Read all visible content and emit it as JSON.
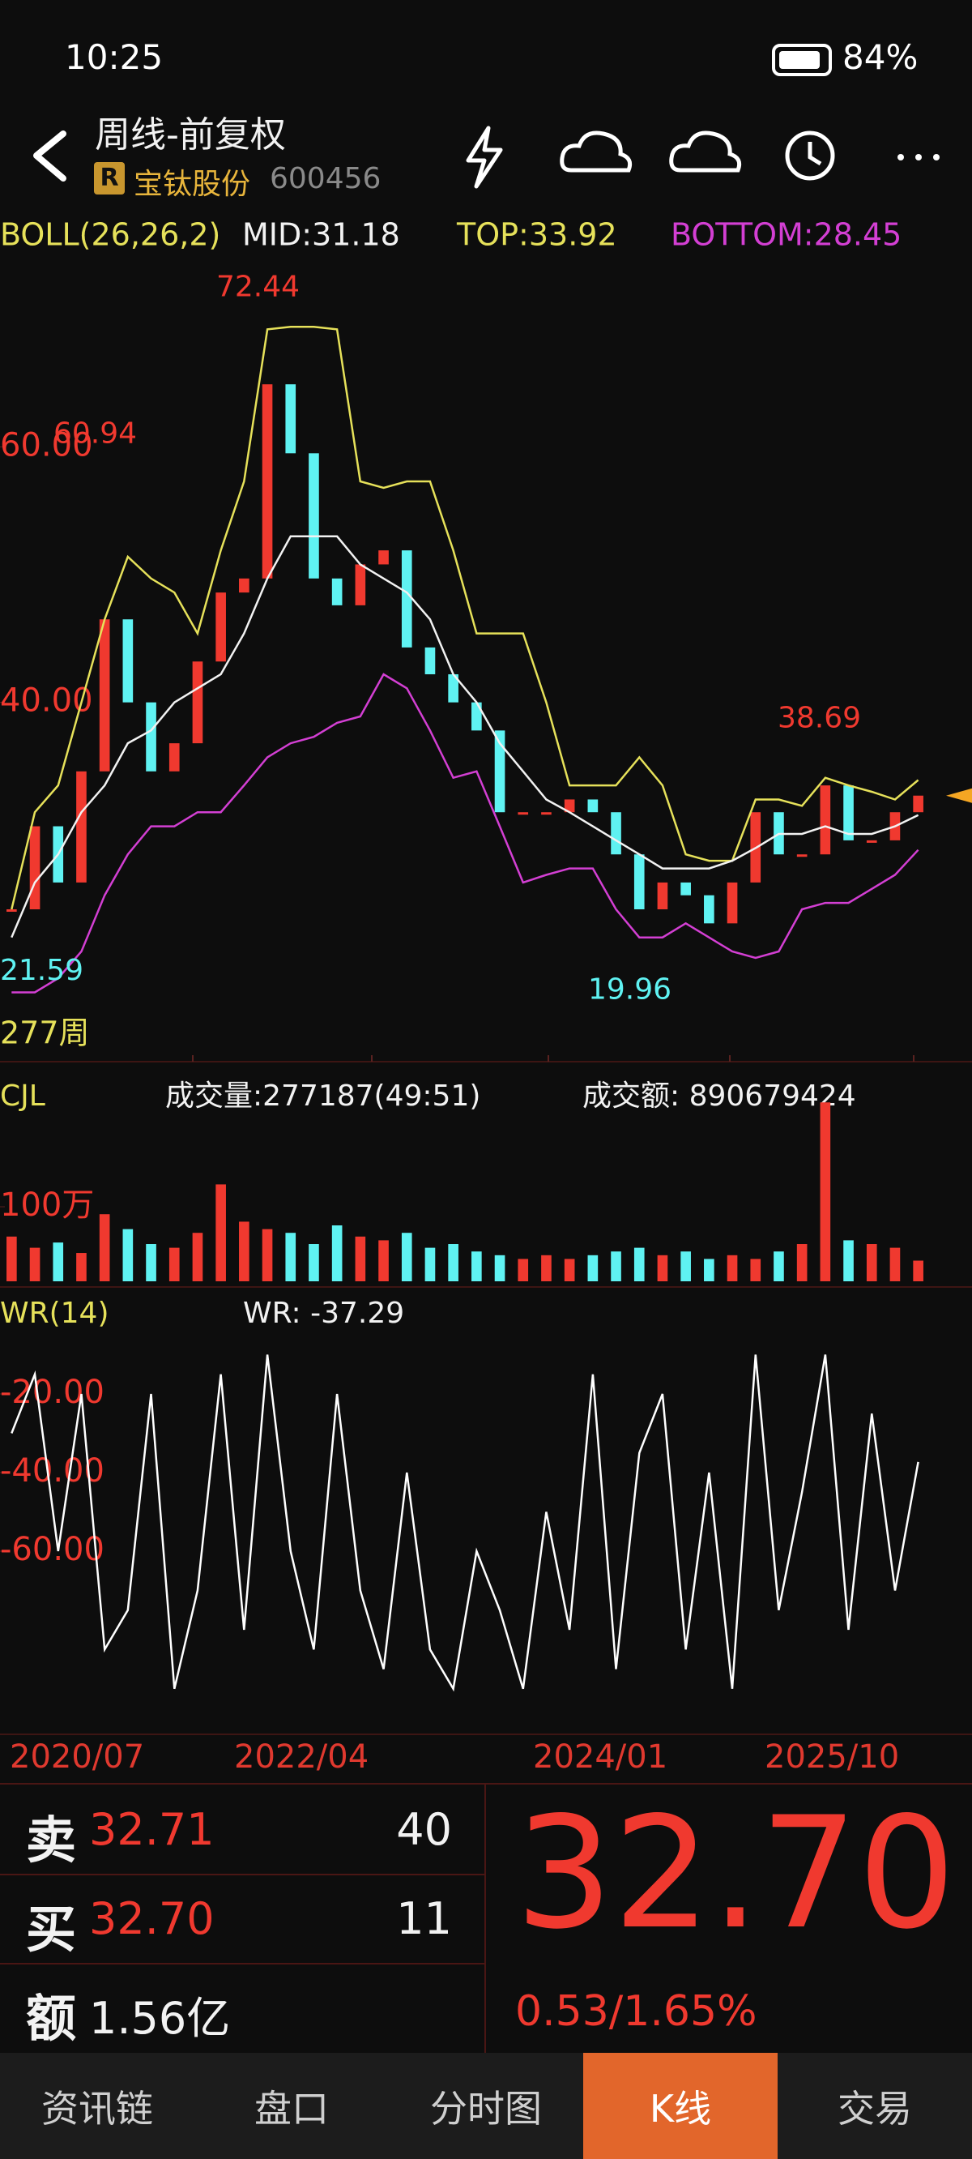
{
  "status_bar": {
    "time": "10:25",
    "battery": "84%"
  },
  "header": {
    "title": "周线-前复权",
    "badge": "R",
    "stock_name": "宝钛股份",
    "stock_code": "600456"
  },
  "chart_data": [
    {
      "type": "candlestick",
      "indicator": "BOLL(26,26,2)",
      "mid_text": "MID:31.18",
      "top_text": "TOP:33.92",
      "bottom_text": "BOTTOM:28.45",
      "period": "277周",
      "ylim": [
        12,
        75
      ],
      "yticks": [
        {
          "value": 60,
          "label": "60.00"
        },
        {
          "value": 40,
          "label": "40.00"
        }
      ],
      "up_color": "#f0392f",
      "down_color": "#5ff2f2",
      "close": [
        23.8,
        30.3,
        25.9,
        34.6,
        46.5,
        40.0,
        34.6,
        36.8,
        43.2,
        48.6,
        49.7,
        64.9,
        59.5,
        49.7,
        47.6,
        50.8,
        51.9,
        44.3,
        42.2,
        40.0,
        37.8,
        31.4,
        31.4,
        31.4,
        32.4,
        31.4,
        28.1,
        23.8,
        25.9,
        24.9,
        22.7,
        25.9,
        31.4,
        28.1,
        28.1,
        33.5,
        29.2,
        29.2,
        31.4,
        32.7
      ],
      "bands": [
        {
          "color": "#e6e15a",
          "values": [
            23.8,
            31.4,
            33.5,
            40.0,
            46.5,
            51.4,
            49.7,
            48.6,
            45.4,
            51.9,
            57.3,
            69.2,
            69.4,
            69.4,
            69.2,
            57.3,
            56.8,
            57.3,
            57.3,
            51.9,
            45.4,
            45.4,
            45.4,
            40.0,
            33.5,
            33.5,
            33.5,
            35.7,
            33.5,
            28.1,
            27.6,
            27.6,
            32.4,
            32.4,
            31.9,
            34.1,
            33.5,
            33.0,
            32.4,
            33.92
          ]
        },
        {
          "color": "#f2f2f2",
          "values": [
            21.6,
            25.9,
            28.1,
            31.4,
            33.5,
            36.8,
            37.8,
            40.0,
            41.1,
            42.2,
            45.4,
            49.7,
            53.0,
            53.0,
            53.0,
            50.8,
            49.7,
            48.6,
            46.5,
            42.2,
            40.0,
            36.8,
            34.6,
            32.4,
            31.4,
            30.3,
            29.2,
            28.1,
            27.0,
            27.0,
            27.0,
            27.6,
            28.6,
            29.7,
            29.7,
            30.3,
            29.7,
            29.7,
            30.3,
            31.18
          ]
        },
        {
          "color": "#d33fd3",
          "values": [
            17.3,
            17.3,
            18.4,
            20.5,
            24.9,
            28.1,
            30.3,
            30.3,
            31.4,
            31.4,
            33.5,
            35.7,
            36.8,
            37.3,
            38.4,
            38.9,
            42.2,
            41.1,
            37.8,
            34.1,
            34.6,
            30.3,
            25.9,
            26.5,
            27.0,
            27.0,
            23.8,
            21.6,
            21.6,
            22.7,
            21.6,
            20.5,
            20.0,
            20.5,
            23.8,
            24.3,
            24.3,
            25.4,
            26.5,
            28.45
          ]
        }
      ],
      "annotations": [
        72.44,
        60.94,
        38.69,
        21.59,
        19.96
      ],
      "annotation_colors": [
        "#f0392f",
        "#f0392f",
        "#f0392f",
        "#5ff2f2",
        "#5ff2f2"
      ]
    },
    {
      "type": "bar",
      "indicator": "CJL",
      "volume_text": "成交量:277187(49:51)",
      "amount_text": "成交额: 890679424",
      "ylim": [
        0,
        2620000
      ],
      "yticks": [
        {
          "value": 1000000,
          "label": "100万"
        }
      ],
      "values": [
        600000,
        450000,
        520000,
        380000,
        900000,
        700000,
        500000,
        450000,
        650000,
        1300000,
        800000,
        700000,
        650000,
        500000,
        750000,
        600000,
        550000,
        650000,
        450000,
        500000,
        400000,
        350000,
        300000,
        350000,
        300000,
        350000,
        400000,
        450000,
        350000,
        400000,
        300000,
        350000,
        300000,
        400000,
        500000,
        2400000,
        550000,
        500000,
        450000,
        277187
      ]
    },
    {
      "type": "line",
      "indicator": "WR(14)",
      "value_text": "WR: -37.29",
      "color": "#ffffff",
      "ylim": [
        -100,
        0
      ],
      "yticks": [
        {
          "value": -20,
          "label": "-20.00"
        },
        {
          "value": -40,
          "label": "-40.00"
        },
        {
          "value": -60,
          "label": "-60.00"
        }
      ],
      "values": [
        -30,
        -15,
        -60,
        -20,
        -85,
        -75,
        -20,
        -95,
        -70,
        -15,
        -80,
        -10,
        -60,
        -85,
        -20,
        -70,
        -90,
        -40,
        -85,
        -95,
        -60,
        -75,
        -95,
        -50,
        -80,
        -15,
        -90,
        -35,
        -20,
        -85,
        -40,
        -95,
        -10,
        -75,
        -45,
        -10,
        -80,
        -25,
        -70,
        -37.29
      ]
    }
  ],
  "dates": [
    "2020/07",
    "2022/04",
    "2024/01",
    "2025/10"
  ],
  "quote": {
    "sell_label": "卖",
    "sell_price": "32.71",
    "sell_volume": "40",
    "buy_label": "买",
    "buy_price": "32.70",
    "buy_volume": "11",
    "amount_label": "额",
    "amount": "1.56亿",
    "last_price": "32.70",
    "change": "0.53/1.65%"
  },
  "tabs": [
    "资讯链",
    "盘口",
    "分时图",
    "K线",
    "交易"
  ],
  "active_tab": 3
}
